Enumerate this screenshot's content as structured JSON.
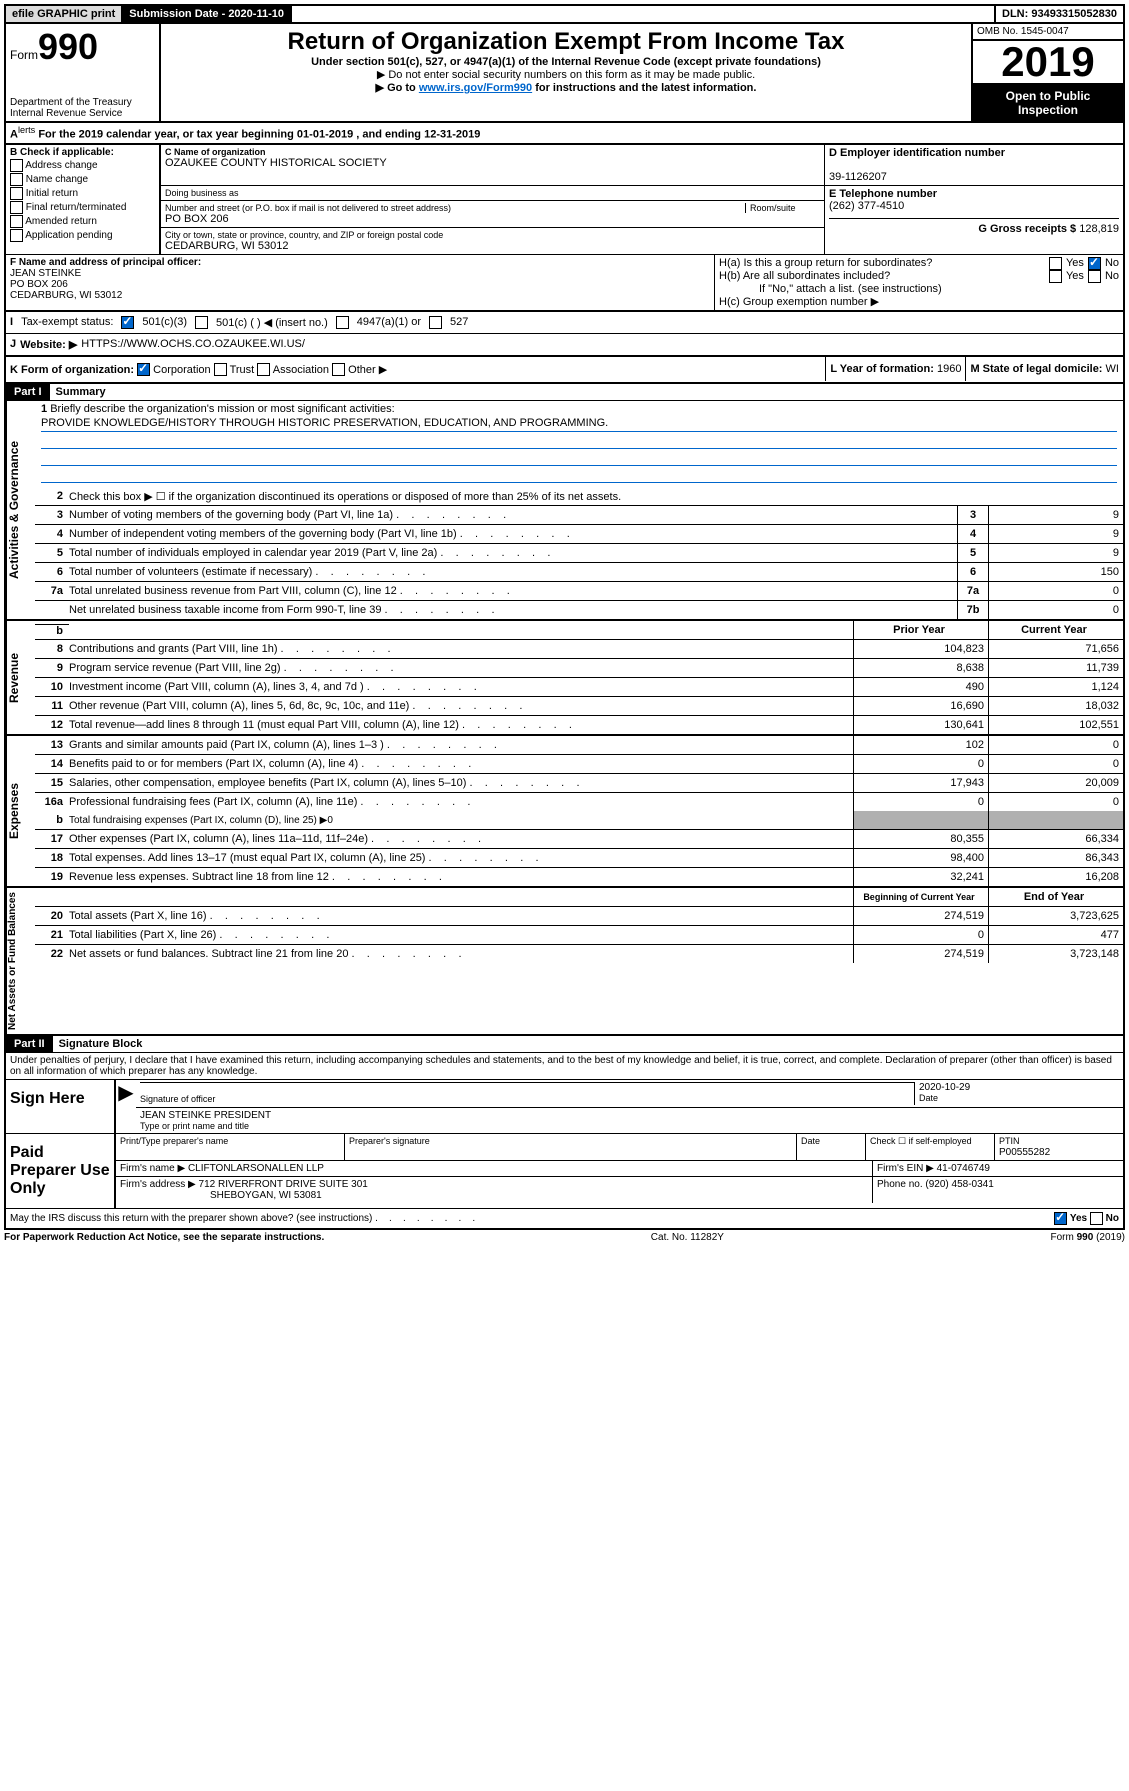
{
  "topbar": {
    "efile": "efile GRAPHIC print",
    "subdate_label": "Submission Date - 2020-11-10",
    "dln": "DLN: 93493315052830"
  },
  "header": {
    "form_prefix": "Form",
    "form_no": "990",
    "dept": "Department of the Treasury",
    "irs": "Internal Revenue Service",
    "title": "Return of Organization Exempt From Income Tax",
    "subtitle": "Under section 501(c), 527, or 4947(a)(1) of the Internal Revenue Code (except private foundations)",
    "note1": "▶ Do not enter social security numbers on this form as it may be made public.",
    "note2_pre": "▶ Go to ",
    "note2_link": "www.irs.gov/Form990",
    "note2_post": " for instructions and the latest information.",
    "omb": "OMB No. 1545-0047",
    "year": "2019",
    "open": "Open to Public Inspection"
  },
  "rowA": "For the 2019 calendar year, or tax year beginning 01-01-2019   , and ending 12-31-2019",
  "sectionB": {
    "label": "B Check if applicable:",
    "items": [
      "Address change",
      "Name change",
      "Initial return",
      "Final return/terminated",
      "Amended return",
      "Application pending"
    ]
  },
  "sectionC": {
    "name_lbl": "C Name of organization",
    "name": "OZAUKEE COUNTY HISTORICAL SOCIETY",
    "dba_lbl": "Doing business as",
    "addr_lbl": "Number and street (or P.O. box if mail is not delivered to street address)",
    "room_lbl": "Room/suite",
    "addr": "PO BOX 206",
    "city_lbl": "City or town, state or province, country, and ZIP or foreign postal code",
    "city": "CEDARBURG, WI  53012"
  },
  "sectionD": {
    "lbl": "D Employer identification number",
    "val": "39-1126207"
  },
  "sectionE": {
    "lbl": "E Telephone number",
    "val": "(262) 377-4510"
  },
  "sectionG": {
    "lbl": "G Gross receipts $",
    "val": "128,819"
  },
  "sectionF": {
    "lbl": "F Name and address of principal officer:",
    "name": "JEAN STEINKE",
    "addr1": "PO BOX 206",
    "addr2": "CEDARBURG, WI  53012"
  },
  "sectionH": {
    "ha": "H(a)  Is this a group return for subordinates?",
    "hb": "H(b)  Are all subordinates included?",
    "hb_note": "If \"No,\" attach a list. (see instructions)",
    "hc": "H(c)  Group exemption number ▶",
    "yes": "Yes",
    "no": "No"
  },
  "rowI": {
    "lbl": "Tax-exempt status:",
    "opts": [
      "501(c)(3)",
      "501(c) (  ) ◀ (insert no.)",
      "4947(a)(1) or",
      "527"
    ]
  },
  "rowJ": {
    "lbl": "Website: ▶",
    "val": "HTTPS://WWW.OCHS.CO.OZAUKEE.WI.US/"
  },
  "rowK": {
    "lbl": "K Form of organization:",
    "opts": [
      "Corporation",
      "Trust",
      "Association",
      "Other ▶"
    ],
    "l_lbl": "L Year of formation:",
    "l_val": "1960",
    "m_lbl": "M State of legal domicile:",
    "m_val": "WI"
  },
  "part1": {
    "header": "Part I",
    "title": "Summary",
    "q1": "Briefly describe the organization's mission or most significant activities:",
    "mission": "PROVIDE KNOWLEDGE/HISTORY THROUGH HISTORIC PRESERVATION, EDUCATION, AND PROGRAMMING.",
    "q2": "Check this box ▶ ☐  if the organization discontinued its operations or disposed of more than 25% of its net assets.",
    "gov_lines": [
      {
        "n": "3",
        "d": "Number of voting members of the governing body (Part VI, line 1a)",
        "k": "3",
        "v": "9"
      },
      {
        "n": "4",
        "d": "Number of independent voting members of the governing body (Part VI, line 1b)",
        "k": "4",
        "v": "9"
      },
      {
        "n": "5",
        "d": "Total number of individuals employed in calendar year 2019 (Part V, line 2a)",
        "k": "5",
        "v": "9"
      },
      {
        "n": "6",
        "d": "Total number of volunteers (estimate if necessary)",
        "k": "6",
        "v": "150"
      },
      {
        "n": "7a",
        "d": "Total unrelated business revenue from Part VIII, column (C), line 12",
        "k": "7a",
        "v": "0"
      },
      {
        "n": "",
        "d": "Net unrelated business taxable income from Form 990-T, line 39",
        "k": "7b",
        "v": "0"
      }
    ],
    "py": "Prior Year",
    "cy": "Current Year",
    "rev_lines": [
      {
        "n": "8",
        "d": "Contributions and grants (Part VIII, line 1h)",
        "p": "104,823",
        "c": "71,656"
      },
      {
        "n": "9",
        "d": "Program service revenue (Part VIII, line 2g)",
        "p": "8,638",
        "c": "11,739"
      },
      {
        "n": "10",
        "d": "Investment income (Part VIII, column (A), lines 3, 4, and 7d )",
        "p": "490",
        "c": "1,124"
      },
      {
        "n": "11",
        "d": "Other revenue (Part VIII, column (A), lines 5, 6d, 8c, 9c, 10c, and 11e)",
        "p": "16,690",
        "c": "18,032"
      },
      {
        "n": "12",
        "d": "Total revenue—add lines 8 through 11 (must equal Part VIII, column (A), line 12)",
        "p": "130,641",
        "c": "102,551"
      }
    ],
    "exp_lines": [
      {
        "n": "13",
        "d": "Grants and similar amounts paid (Part IX, column (A), lines 1–3 )",
        "p": "102",
        "c": "0"
      },
      {
        "n": "14",
        "d": "Benefits paid to or for members (Part IX, column (A), line 4)",
        "p": "0",
        "c": "0"
      },
      {
        "n": "15",
        "d": "Salaries, other compensation, employee benefits (Part IX, column (A), lines 5–10)",
        "p": "17,943",
        "c": "20,009"
      },
      {
        "n": "16a",
        "d": "Professional fundraising fees (Part IX, column (A), line 11e)",
        "p": "0",
        "c": "0"
      }
    ],
    "exp_16b": {
      "n": "b",
      "d": "Total fundraising expenses (Part IX, column (D), line 25) ▶0"
    },
    "exp_lines2": [
      {
        "n": "17",
        "d": "Other expenses (Part IX, column (A), lines 11a–11d, 11f–24e)",
        "p": "80,355",
        "c": "66,334"
      },
      {
        "n": "18",
        "d": "Total expenses. Add lines 13–17 (must equal Part IX, column (A), line 25)",
        "p": "98,400",
        "c": "86,343"
      },
      {
        "n": "19",
        "d": "Revenue less expenses. Subtract line 18 from line 12",
        "p": "32,241",
        "c": "16,208"
      }
    ],
    "by": "Beginning of Current Year",
    "ey": "End of Year",
    "net_lines": [
      {
        "n": "20",
        "d": "Total assets (Part X, line 16)",
        "p": "274,519",
        "c": "3,723,625"
      },
      {
        "n": "21",
        "d": "Total liabilities (Part X, line 26)",
        "p": "0",
        "c": "477"
      },
      {
        "n": "22",
        "d": "Net assets or fund balances. Subtract line 21 from line 20",
        "p": "274,519",
        "c": "3,723,148"
      }
    ],
    "side_gov": "Activities & Governance",
    "side_rev": "Revenue",
    "side_exp": "Expenses",
    "side_net": "Net Assets or Fund Balances"
  },
  "part2": {
    "header": "Part II",
    "title": "Signature Block",
    "perjury": "Under penalties of perjury, I declare that I have examined this return, including accompanying schedules and statements, and to the best of my knowledge and belief, it is true, correct, and complete. Declaration of preparer (other than officer) is based on all information of which preparer has any knowledge.",
    "sign_here": "Sign Here",
    "sig_officer": "Signature of officer",
    "date_lbl": "Date",
    "date_val": "2020-10-29",
    "officer_name": "JEAN STEINKE PRESIDENT",
    "type_name": "Type or print name and title",
    "paid": "Paid Preparer Use Only",
    "prep_name_lbl": "Print/Type preparer's name",
    "prep_sig_lbl": "Preparer's signature",
    "check_self": "Check ☐ if self-employed",
    "ptin_lbl": "PTIN",
    "ptin": "P00555282",
    "firm_name_lbl": "Firm's name    ▶",
    "firm_name": "CLIFTONLARSONALLEN LLP",
    "firm_ein_lbl": "Firm's EIN ▶",
    "firm_ein": "41-0746749",
    "firm_addr_lbl": "Firm's address ▶",
    "firm_addr1": "712 RIVERFRONT DRIVE SUITE 301",
    "firm_addr2": "SHEBOYGAN, WI  53081",
    "phone_lbl": "Phone no.",
    "phone": "(920) 458-0341",
    "discuss": "May the IRS discuss this return with the preparer shown above? (see instructions)"
  },
  "footer": {
    "pra": "For Paperwork Reduction Act Notice, see the separate instructions.",
    "cat": "Cat. No. 11282Y",
    "form": "Form 990 (2019)"
  }
}
